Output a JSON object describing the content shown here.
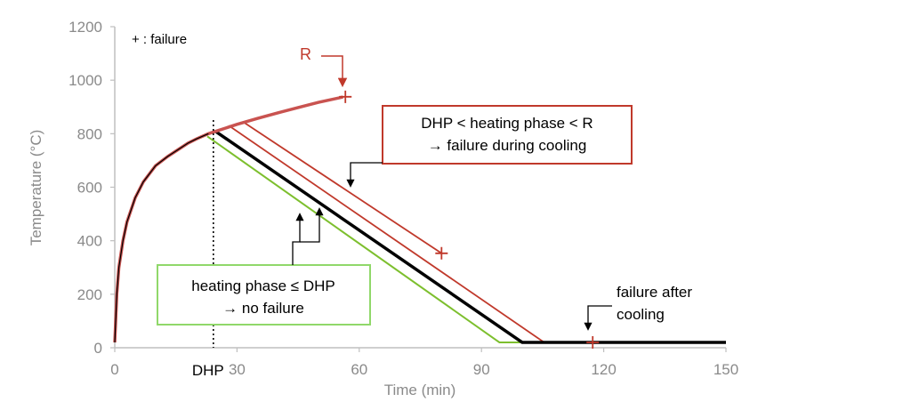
{
  "chart_data": {
    "type": "line",
    "title": "",
    "xlabel": "Time (min)",
    "ylabel": "Temperature (°C)",
    "xlim": [
      0,
      150
    ],
    "ylim": [
      0,
      1200
    ],
    "xticks": [
      0,
      30,
      60,
      90,
      120,
      150
    ],
    "yticks": [
      0,
      200,
      400,
      600,
      800,
      1000,
      1200
    ],
    "grid": false,
    "colors": {
      "red": "#c0392b",
      "green": "#7dbf2e",
      "black": "#000000",
      "axis": "#bfbfbf",
      "text": "#8a8a8a"
    },
    "heating_curve": {
      "x": [
        0,
        0.5,
        1,
        2,
        3,
        5,
        7,
        10,
        13,
        15,
        18,
        20,
        23,
        25,
        30,
        35,
        40,
        45,
        50,
        56
      ],
      "y": [
        20,
        200,
        300,
        400,
        470,
        560,
        620,
        680,
        715,
        735,
        765,
        780,
        800,
        810,
        835,
        857,
        878,
        898,
        917,
        937
      ]
    },
    "series": [
      {
        "x": [
          22.7,
          94.4,
          150
        ],
        "y": [
          790,
          20,
          20
        ]
      },
      {
        "x": [
          24.6,
          100,
          150
        ],
        "y": [
          810,
          20,
          20
        ]
      },
      {
        "x": [
          28,
          105.4,
          150
        ],
        "y": [
          830,
          20,
          20
        ]
      },
      {
        "x": [
          31.4,
          80.2
        ],
        "y": [
          845,
          353
        ]
      }
    ],
    "failure_points": [
      {
        "x": 56.6,
        "y": 938
      },
      {
        "x": 80.2,
        "y": 353
      },
      {
        "x": 117.3,
        "y": 20
      }
    ],
    "dhp_x": 24.2,
    "dhp_label": "DHP",
    "legend_text": "+ : failure",
    "annotations": {
      "r_label": "R",
      "cooling_box": [
        "DHP < heating phase < R",
        "→ failure during cooling"
      ],
      "nofail_box": [
        "heating phase ≤ DHP",
        "→ no failure"
      ],
      "after_cooling": [
        "failure after",
        "cooling"
      ]
    }
  }
}
